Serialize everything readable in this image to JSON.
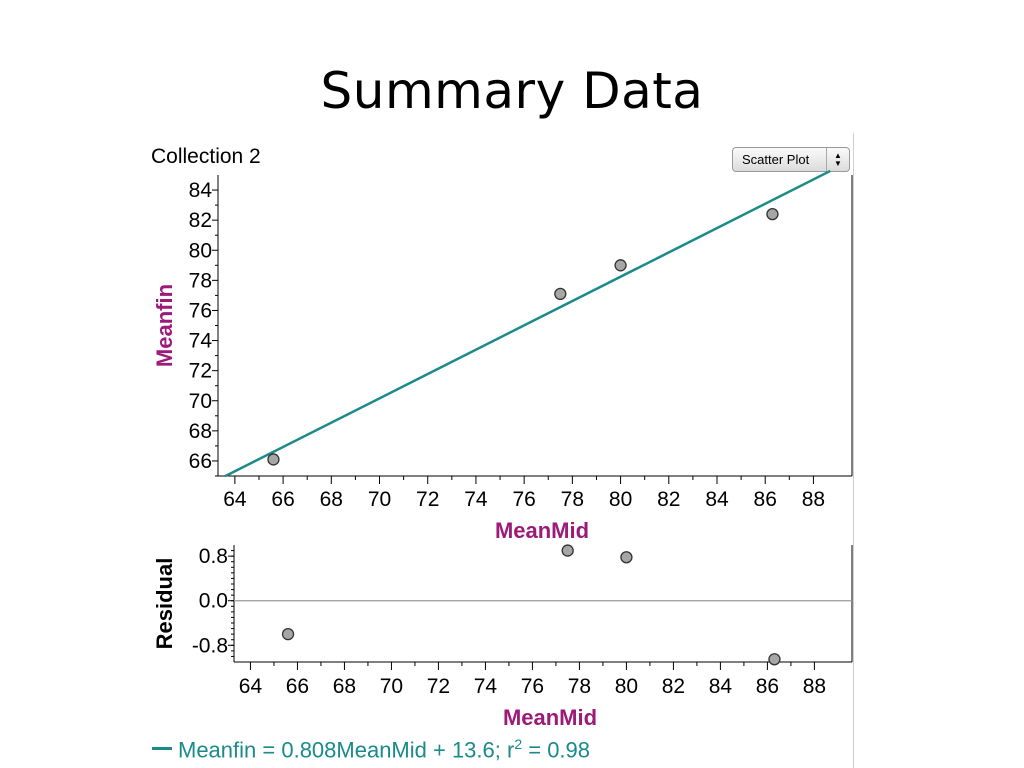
{
  "slide": {
    "title": "Summary Data"
  },
  "collection": {
    "name": "Collection 2"
  },
  "plot_type": {
    "label": "Scatter Plot"
  },
  "equation": {
    "text": "Meanfin = 0.808MeanMid + 13.6; r",
    "sup": "2",
    "tail": " = 0.98"
  },
  "colors": {
    "line": "#1a8a8a",
    "axis_label": "#9c1a78",
    "point_fill": "#a6a6a6"
  },
  "chart_data": [
    {
      "type": "scatter",
      "title": "",
      "xlabel": "MeanMid",
      "ylabel": "Meanfin",
      "xlim": [
        63.3,
        89.6
      ],
      "ylim": [
        65,
        85
      ],
      "xticks": [
        64,
        66,
        68,
        70,
        72,
        74,
        76,
        78,
        80,
        82,
        84,
        86,
        88
      ],
      "yticks": [
        66,
        68,
        70,
        72,
        74,
        76,
        78,
        80,
        82,
        84
      ],
      "points": [
        {
          "x": 65.6,
          "y": 66.1
        },
        {
          "x": 77.5,
          "y": 77.1
        },
        {
          "x": 80.0,
          "y": 79.0
        },
        {
          "x": 86.3,
          "y": 82.4
        }
      ],
      "regression": {
        "slope": 0.808,
        "intercept": 13.6,
        "x_from": 63.6,
        "x_to": 88.7
      }
    },
    {
      "type": "scatter",
      "title": "",
      "xlabel": "MeanMid",
      "ylabel": "Residual",
      "xlim": [
        63.3,
        89.6
      ],
      "ylim": [
        -1.1,
        1.0
      ],
      "xticks": [
        64,
        66,
        68,
        70,
        72,
        74,
        76,
        78,
        80,
        82,
        84,
        86,
        88
      ],
      "yticks": [
        0.8,
        0.0,
        -0.8
      ],
      "ytick_labels": [
        "0.8",
        "0.0",
        "-0.8"
      ],
      "points": [
        {
          "x": 65.6,
          "y": -0.6
        },
        {
          "x": 77.5,
          "y": 0.9
        },
        {
          "x": 80.0,
          "y": 0.78
        },
        {
          "x": 86.3,
          "y": -1.05
        }
      ]
    }
  ]
}
